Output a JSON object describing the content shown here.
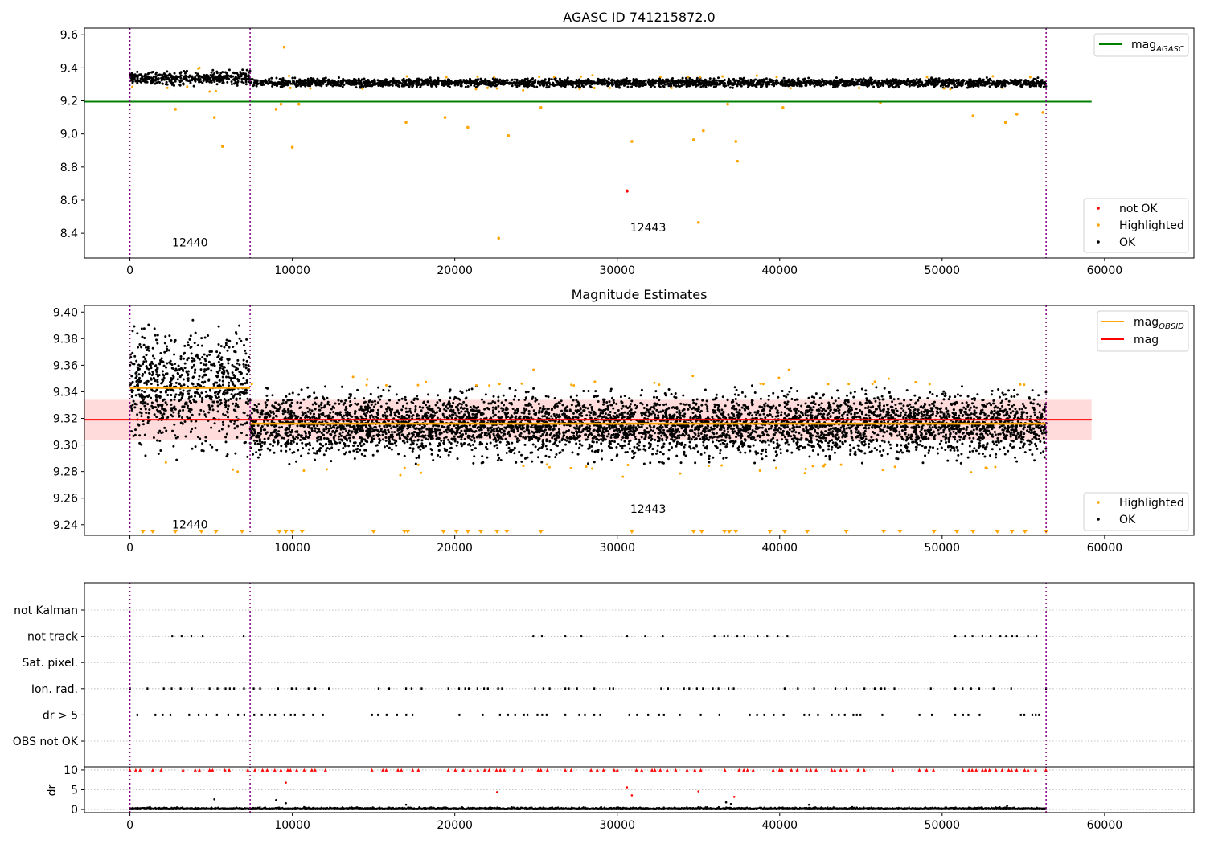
{
  "chart_data": [
    {
      "id": "panel1",
      "type": "scatter",
      "title": "AGASC ID 741215872.0",
      "xlim": [
        -2800,
        65500
      ],
      "ylim": [
        8.25,
        9.64
      ],
      "xticks": [
        0,
        10000,
        20000,
        30000,
        40000,
        50000,
        60000
      ],
      "yticks": [
        8.4,
        8.6,
        8.8,
        9.0,
        9.2,
        9.4,
        9.6
      ],
      "xtick_labels": [
        "0",
        "10000",
        "20000",
        "30000",
        "40000",
        "50000",
        "60000"
      ],
      "ytick_labels": [
        "8.4",
        "8.6",
        "8.8",
        "9.0",
        "9.2",
        "9.4",
        "9.6"
      ],
      "obsid_boundaries": [
        0,
        7400,
        56400
      ],
      "annotations": [
        {
          "text": "12440",
          "x": 3700,
          "y": 8.32
        },
        {
          "text": "12443",
          "x": 31900,
          "y": 8.41
        }
      ],
      "mag_agasc": 9.195,
      "mag_agasc_xrange": [
        -2800,
        59200
      ],
      "segments": [
        {
          "x_start": 0,
          "x_end": 7400,
          "center": 9.34,
          "spread": 0.02
        },
        {
          "x_start": 7400,
          "x_end": 56400,
          "center": 9.31,
          "spread": 0.012
        }
      ],
      "not_ok_points": [
        [
          30600,
          8.655
        ]
      ],
      "highlighted_points": [
        [
          9500,
          9.525
        ],
        [
          2800,
          9.15
        ],
        [
          5200,
          9.1
        ],
        [
          5700,
          8.925
        ],
        [
          10000,
          8.92
        ],
        [
          9000,
          9.15
        ],
        [
          9300,
          9.18
        ],
        [
          10400,
          9.18
        ],
        [
          17000,
          9.07
        ],
        [
          19400,
          9.1
        ],
        [
          20800,
          9.04
        ],
        [
          22700,
          8.37
        ],
        [
          23300,
          8.99
        ],
        [
          25300,
          9.16
        ],
        [
          30900,
          8.955
        ],
        [
          34700,
          8.965
        ],
        [
          35000,
          8.465
        ],
        [
          35300,
          9.02
        ],
        [
          37300,
          8.955
        ],
        [
          37400,
          8.835
        ],
        [
          36800,
          9.18
        ],
        [
          40200,
          9.16
        ],
        [
          46200,
          9.19
        ],
        [
          51900,
          9.11
        ],
        [
          53900,
          9.07
        ],
        [
          54600,
          9.12
        ],
        [
          56200,
          9.13
        ]
      ],
      "legend": {
        "line_entries": [
          {
            "label": "mag",
            "sub": "AGASC",
            "color": "#008000"
          }
        ],
        "point_entries": [
          {
            "label": "not OK",
            "color": "#ff0000"
          },
          {
            "label": "Highlighted",
            "color": "#ffa500"
          },
          {
            "label": "OK",
            "color": "#000000"
          }
        ]
      }
    },
    {
      "id": "panel2",
      "type": "scatter",
      "title": "Magnitude Estimates",
      "xlim": [
        -2800,
        65500
      ],
      "ylim": [
        9.232,
        9.405
      ],
      "xticks": [
        0,
        10000,
        20000,
        30000,
        40000,
        50000,
        60000
      ],
      "yticks": [
        9.24,
        9.26,
        9.28,
        9.3,
        9.32,
        9.34,
        9.36,
        9.38,
        9.4
      ],
      "xtick_labels": [
        "0",
        "10000",
        "20000",
        "30000",
        "40000",
        "50000",
        "60000"
      ],
      "ytick_labels": [
        "9.24",
        "9.26",
        "9.28",
        "9.30",
        "9.32",
        "9.34",
        "9.36",
        "9.38",
        "9.40"
      ],
      "obsid_boundaries": [
        0,
        7400,
        56400
      ],
      "annotations": [
        {
          "text": "12440",
          "x": 3700,
          "y": 9.237
        },
        {
          "text": "12443",
          "x": 31900,
          "y": 9.249
        }
      ],
      "mag": 9.319,
      "mag_band": [
        9.304,
        9.334
      ],
      "mag_xrange": [
        -2800,
        59200
      ],
      "mag_obsid": [
        {
          "x_start": 0,
          "x_end": 7400,
          "value": 9.343
        },
        {
          "x_start": 7400,
          "x_end": 56400,
          "value": 9.316
        }
      ],
      "segments": [
        {
          "x_start": 0,
          "x_end": 7400,
          "center": 9.342,
          "spread": 0.02
        },
        {
          "x_start": 7400,
          "x_end": 56400,
          "center": 9.315,
          "spread": 0.011
        }
      ],
      "legend": {
        "line_entries": [
          {
            "label": "mag",
            "sub": "OBSID",
            "color": "#ffa500"
          },
          {
            "label": "mag",
            "sub": "",
            "color": "#ff0000"
          }
        ],
        "point_entries": [
          {
            "label": "Highlighted",
            "color": "#ffa500"
          },
          {
            "label": "OK",
            "color": "#000000"
          }
        ]
      }
    },
    {
      "id": "panel3",
      "type": "scatter",
      "xlim": [
        -2800,
        65500
      ],
      "flag_rows": [
        "not Kalman",
        "not track",
        "Sat. pixel.",
        "Ion. rad.",
        "dr > 5",
        "OBS not OK"
      ],
      "obsid_boundaries": [
        0,
        7400,
        56400
      ],
      "flag_ranges": {
        "not track": [
          [
            2600,
            4600
          ],
          [
            7000,
            7500
          ],
          [
            24500,
            25800
          ],
          [
            26800,
            28200
          ],
          [
            30600,
            31800
          ],
          [
            32800,
            33800
          ],
          [
            35500,
            41200
          ],
          [
            50800,
            56400
          ]
        ],
        "Ion. rad.": [
          [
            0,
            12300
          ],
          [
            14900,
            18000
          ],
          [
            19600,
            26000
          ],
          [
            26800,
            42400
          ],
          [
            43200,
            47400
          ],
          [
            48600,
            49600
          ],
          [
            50800,
            56400
          ]
        ],
        "dr > 5": [
          [
            0,
            12300
          ],
          [
            14900,
            18000
          ],
          [
            19600,
            26000
          ],
          [
            26800,
            42400
          ],
          [
            43200,
            47400
          ],
          [
            48600,
            49600
          ],
          [
            50800,
            56400
          ]
        ]
      }
    },
    {
      "id": "panel4",
      "type": "scatter",
      "xlim": [
        -2800,
        65500
      ],
      "ylim": [
        -0.8,
        10.8
      ],
      "ylabel": "dr",
      "xticks": [
        0,
        10000,
        20000,
        30000,
        40000,
        50000,
        60000
      ],
      "yticks": [
        0,
        5,
        10
      ],
      "xtick_labels": [
        "0",
        "10000",
        "20000",
        "30000",
        "40000",
        "50000",
        "60000"
      ],
      "ytick_labels": [
        "0",
        "5",
        "10"
      ],
      "obsid_boundaries": [
        0,
        7400,
        56400
      ],
      "red_points": [
        [
          9600,
          6.8
        ],
        [
          22600,
          4.4
        ],
        [
          30600,
          5.6
        ],
        [
          30900,
          3.6
        ],
        [
          35000,
          4.6
        ],
        [
          37200,
          3.2
        ]
      ],
      "black_points": [
        [
          5200,
          2.6
        ],
        [
          9000,
          2.4
        ],
        [
          9600,
          1.6
        ],
        [
          17000,
          1.2
        ],
        [
          36700,
          1.8
        ],
        [
          37000,
          1.4
        ],
        [
          41800,
          1.2
        ],
        [
          54000,
          0.9
        ]
      ]
    }
  ]
}
